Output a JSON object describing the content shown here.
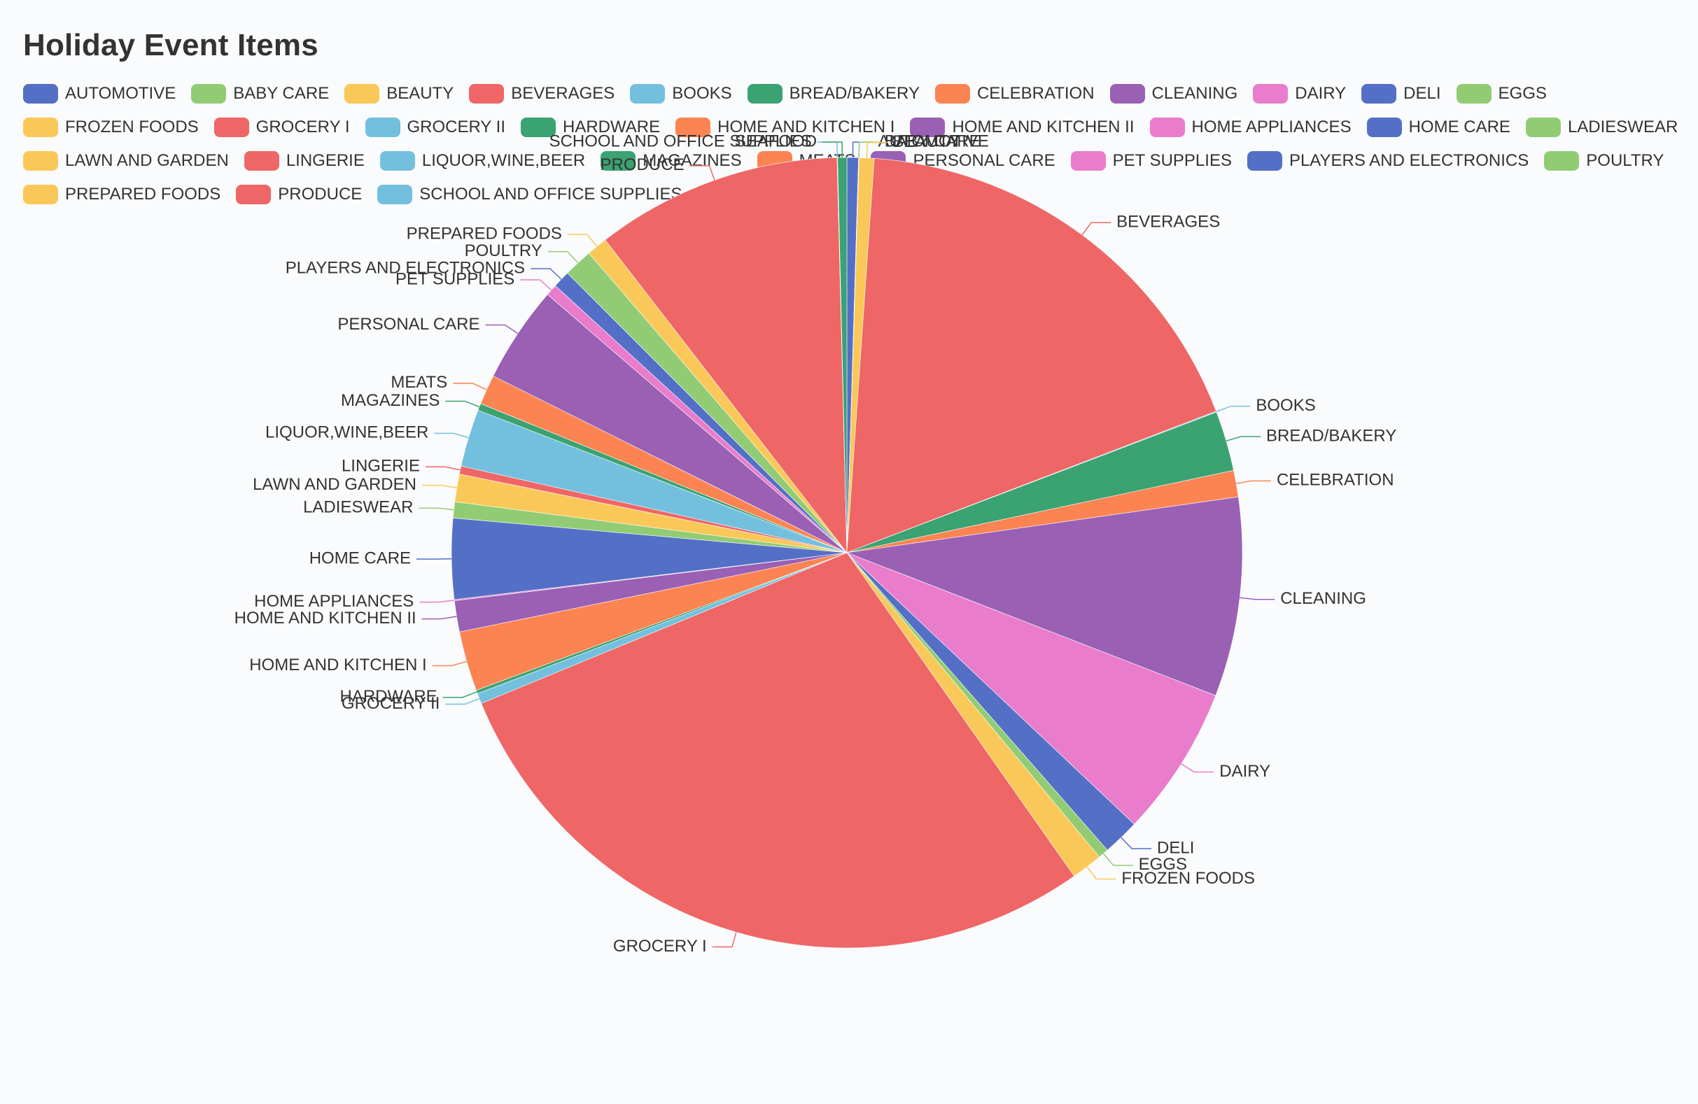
{
  "chart_data": {
    "type": "pie",
    "title": "Holiday Event Items",
    "legend_position": "top",
    "categories": [
      "AUTOMOTIVE",
      "BABY CARE",
      "BEAUTY",
      "BEVERAGES",
      "BOOKS",
      "BREAD/BAKERY",
      "CELEBRATION",
      "CLEANING",
      "DAIRY",
      "DELI",
      "EGGS",
      "FROZEN FOODS",
      "GROCERY I",
      "GROCERY II",
      "HARDWARE",
      "HOME AND KITCHEN I",
      "HOME AND KITCHEN II",
      "HOME APPLIANCES",
      "HOME CARE",
      "LADIESWEAR",
      "LAWN AND GARDEN",
      "LINGERIE",
      "LIQUOR,WINE,BEER",
      "MAGAZINES",
      "MEATS",
      "PERSONAL CARE",
      "PET SUPPLIES",
      "PLAYERS AND ELECTRONICS",
      "POULTRY",
      "PREPARED FOODS",
      "PRODUCE",
      "SCHOOL AND OFFICE SUPPLIES",
      "SEAFOOD"
    ],
    "values": [
      0.5,
      0.02,
      0.65,
      19.2,
      0.04,
      2.6,
      1.15,
      8.65,
      6.55,
      1.6,
      0.45,
      1.35,
      30.3,
      0.45,
      0.15,
      2.6,
      1.35,
      0.05,
      3.5,
      0.7,
      1.2,
      0.35,
      2.5,
      0.3,
      1.3,
      4.2,
      0.5,
      0.75,
      1.25,
      0.9,
      10.7,
      0.02,
      0.4
    ],
    "colors": [
      "#5470c6",
      "#91cc75",
      "#fac858",
      "#ee6666",
      "#73c0de",
      "#3ba272",
      "#fc8452",
      "#9a60b4",
      "#ea7ccc"
    ]
  }
}
